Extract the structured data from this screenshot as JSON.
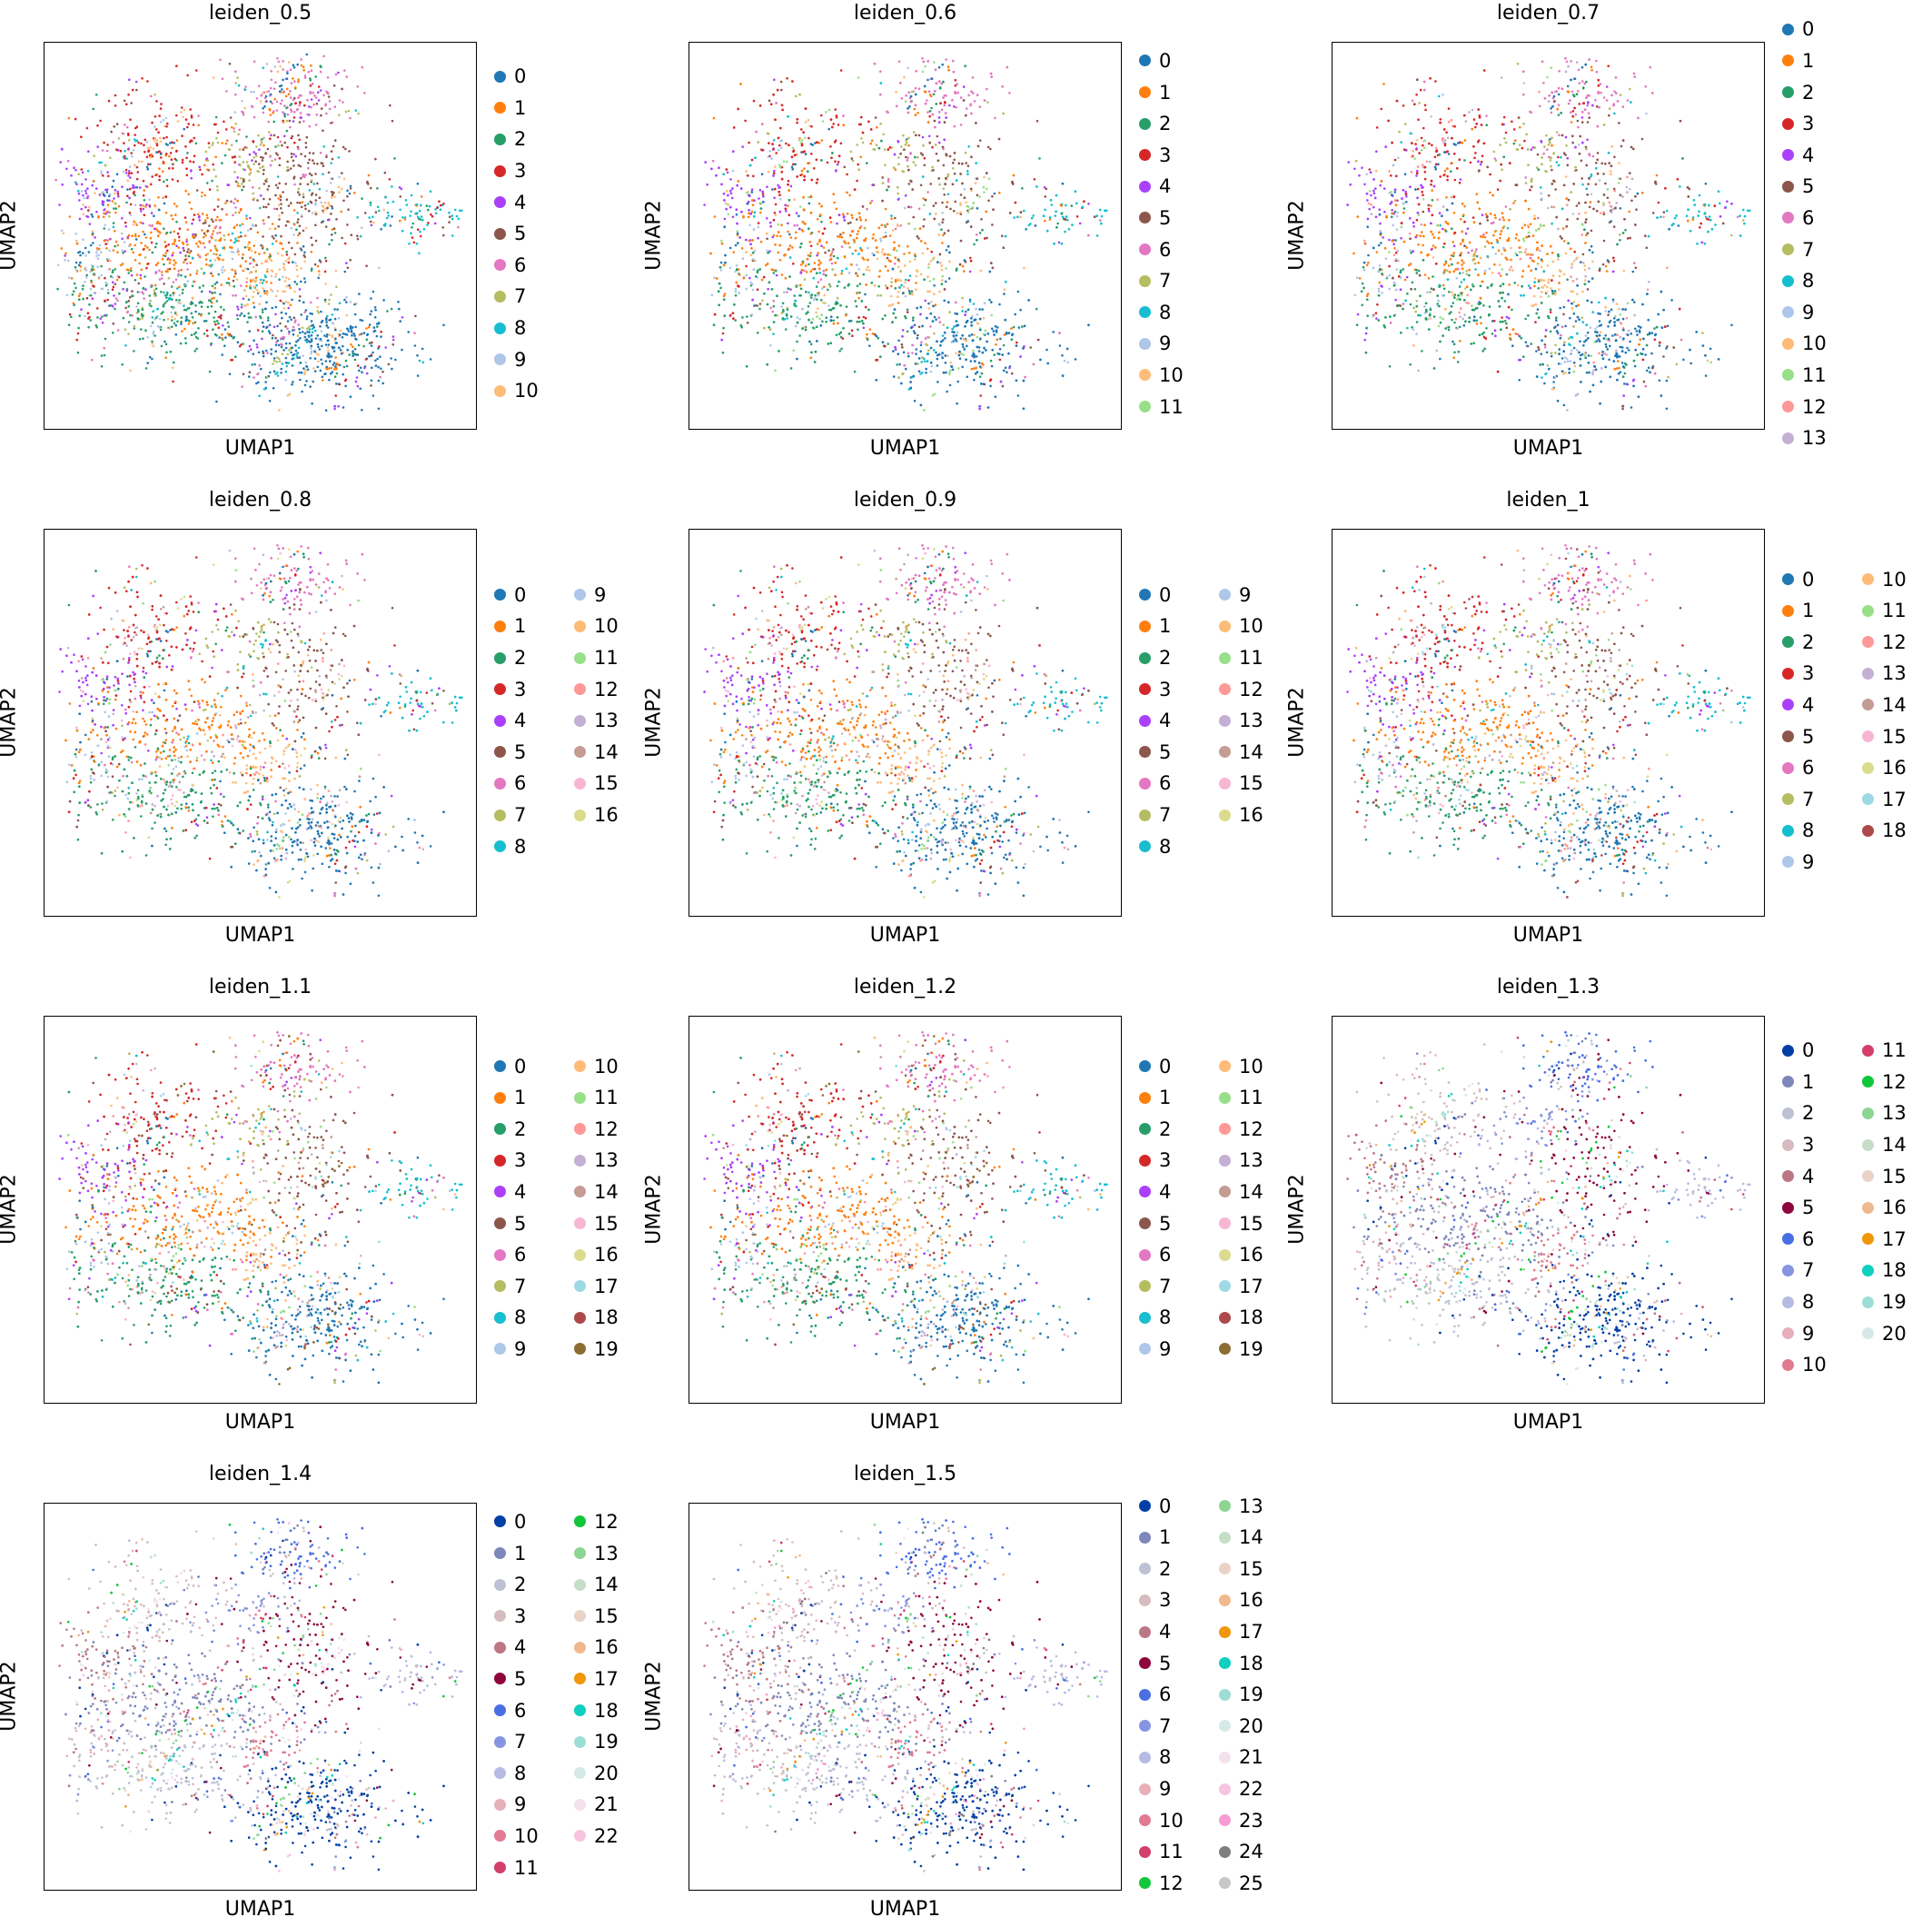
{
  "figure": {
    "xlabel": "UMAP1",
    "ylabel": "UMAP2"
  },
  "chart_data": [
    {
      "type": "scatter",
      "title": "leiden_0.5",
      "xlabel": "UMAP1",
      "ylabel": "UMAP2",
      "grid": false,
      "legend_placement": "right",
      "legend": [
        "0",
        "1",
        "2",
        "3",
        "4",
        "5",
        "6",
        "7",
        "8",
        "9",
        "10"
      ],
      "colors": [
        "#1f77b4",
        "#ff7f0e",
        "#279e68",
        "#d62728",
        "#aa40fc",
        "#8c564b",
        "#e377c2",
        "#b5bd61",
        "#17becf",
        "#aec7e8",
        "#ffbb78"
      ]
    },
    {
      "type": "scatter",
      "title": "leiden_0.6",
      "xlabel": "UMAP1",
      "ylabel": "UMAP2",
      "grid": false,
      "legend_placement": "right",
      "legend": [
        "0",
        "1",
        "2",
        "3",
        "4",
        "5",
        "6",
        "7",
        "8",
        "9",
        "10",
        "11"
      ],
      "colors": [
        "#1f77b4",
        "#ff7f0e",
        "#279e68",
        "#d62728",
        "#aa40fc",
        "#8c564b",
        "#e377c2",
        "#b5bd61",
        "#17becf",
        "#aec7e8",
        "#ffbb78",
        "#98df8a"
      ]
    },
    {
      "type": "scatter",
      "title": "leiden_0.7",
      "xlabel": "UMAP1",
      "ylabel": "UMAP2",
      "grid": false,
      "legend_placement": "right",
      "legend": [
        "0",
        "1",
        "2",
        "3",
        "4",
        "5",
        "6",
        "7",
        "8",
        "9",
        "10",
        "11",
        "12",
        "13"
      ],
      "colors": [
        "#1f77b4",
        "#ff7f0e",
        "#279e68",
        "#d62728",
        "#aa40fc",
        "#8c564b",
        "#e377c2",
        "#b5bd61",
        "#17becf",
        "#aec7e8",
        "#ffbb78",
        "#98df8a",
        "#ff9896",
        "#c5b0d5"
      ]
    },
    {
      "type": "scatter",
      "title": "leiden_0.8",
      "xlabel": "UMAP1",
      "ylabel": "UMAP2",
      "grid": false,
      "legend_placement": "right",
      "legend": [
        "0",
        "1",
        "2",
        "3",
        "4",
        "5",
        "6",
        "7",
        "8",
        "9",
        "10",
        "11",
        "12",
        "13",
        "14",
        "15",
        "16"
      ],
      "colors": [
        "#1f77b4",
        "#ff7f0e",
        "#279e68",
        "#d62728",
        "#aa40fc",
        "#8c564b",
        "#e377c2",
        "#b5bd61",
        "#17becf",
        "#aec7e8",
        "#ffbb78",
        "#98df8a",
        "#ff9896",
        "#c5b0d5",
        "#c49c94",
        "#f7b6d2",
        "#dbdb8d"
      ]
    },
    {
      "type": "scatter",
      "title": "leiden_0.9",
      "xlabel": "UMAP1",
      "ylabel": "UMAP2",
      "grid": false,
      "legend_placement": "right",
      "legend": [
        "0",
        "1",
        "2",
        "3",
        "4",
        "5",
        "6",
        "7",
        "8",
        "9",
        "10",
        "11",
        "12",
        "13",
        "14",
        "15",
        "16"
      ],
      "colors": [
        "#1f77b4",
        "#ff7f0e",
        "#279e68",
        "#d62728",
        "#aa40fc",
        "#8c564b",
        "#e377c2",
        "#b5bd61",
        "#17becf",
        "#aec7e8",
        "#ffbb78",
        "#98df8a",
        "#ff9896",
        "#c5b0d5",
        "#c49c94",
        "#f7b6d2",
        "#dbdb8d"
      ]
    },
    {
      "type": "scatter",
      "title": "leiden_1",
      "xlabel": "UMAP1",
      "ylabel": "UMAP2",
      "grid": false,
      "legend_placement": "right",
      "legend": [
        "0",
        "1",
        "2",
        "3",
        "4",
        "5",
        "6",
        "7",
        "8",
        "9",
        "10",
        "11",
        "12",
        "13",
        "14",
        "15",
        "16",
        "17",
        "18"
      ],
      "colors": [
        "#1f77b4",
        "#ff7f0e",
        "#279e68",
        "#d62728",
        "#aa40fc",
        "#8c564b",
        "#e377c2",
        "#b5bd61",
        "#17becf",
        "#aec7e8",
        "#ffbb78",
        "#98df8a",
        "#ff9896",
        "#c5b0d5",
        "#c49c94",
        "#f7b6d2",
        "#dbdb8d",
        "#9edae5",
        "#ad494a"
      ]
    },
    {
      "type": "scatter",
      "title": "leiden_1.1",
      "xlabel": "UMAP1",
      "ylabel": "UMAP2",
      "grid": false,
      "legend_placement": "right",
      "legend": [
        "0",
        "1",
        "2",
        "3",
        "4",
        "5",
        "6",
        "7",
        "8",
        "9",
        "10",
        "11",
        "12",
        "13",
        "14",
        "15",
        "16",
        "17",
        "18",
        "19"
      ],
      "colors": [
        "#1f77b4",
        "#ff7f0e",
        "#279e68",
        "#d62728",
        "#aa40fc",
        "#8c564b",
        "#e377c2",
        "#b5bd61",
        "#17becf",
        "#aec7e8",
        "#ffbb78",
        "#98df8a",
        "#ff9896",
        "#c5b0d5",
        "#c49c94",
        "#f7b6d2",
        "#dbdb8d",
        "#9edae5",
        "#ad494a",
        "#8c6d31"
      ]
    },
    {
      "type": "scatter",
      "title": "leiden_1.2",
      "xlabel": "UMAP1",
      "ylabel": "UMAP2",
      "grid": false,
      "legend_placement": "right",
      "legend": [
        "0",
        "1",
        "2",
        "3",
        "4",
        "5",
        "6",
        "7",
        "8",
        "9",
        "10",
        "11",
        "12",
        "13",
        "14",
        "15",
        "16",
        "17",
        "18",
        "19"
      ],
      "colors": [
        "#1f77b4",
        "#ff7f0e",
        "#279e68",
        "#d62728",
        "#aa40fc",
        "#8c564b",
        "#e377c2",
        "#b5bd61",
        "#17becf",
        "#aec7e8",
        "#ffbb78",
        "#98df8a",
        "#ff9896",
        "#c5b0d5",
        "#c49c94",
        "#f7b6d2",
        "#dbdb8d",
        "#9edae5",
        "#ad494a",
        "#8c6d31"
      ]
    },
    {
      "type": "scatter",
      "title": "leiden_1.3",
      "xlabel": "UMAP1",
      "ylabel": "UMAP2",
      "grid": false,
      "legend_placement": "right",
      "legend": [
        "0",
        "1",
        "2",
        "3",
        "4",
        "5",
        "6",
        "7",
        "8",
        "9",
        "10",
        "11",
        "12",
        "13",
        "14",
        "15",
        "16",
        "17",
        "18",
        "19",
        "20"
      ],
      "colors": [
        "#023fa5",
        "#7d87b9",
        "#bec1d4",
        "#d6bcc0",
        "#bb7784",
        "#8e063b",
        "#4a6fe3",
        "#8595e1",
        "#b5bbe3",
        "#e6afb9",
        "#e07b91",
        "#d33f6a",
        "#11c638",
        "#8dd593",
        "#c6dec7",
        "#ead3c6",
        "#f0b98d",
        "#ef9708",
        "#0fcfc0",
        "#9cded6",
        "#d5eae7"
      ]
    },
    {
      "type": "scatter",
      "title": "leiden_1.4",
      "xlabel": "UMAP1",
      "ylabel": "UMAP2",
      "grid": false,
      "legend_placement": "right",
      "legend": [
        "0",
        "1",
        "2",
        "3",
        "4",
        "5",
        "6",
        "7",
        "8",
        "9",
        "10",
        "11",
        "12",
        "13",
        "14",
        "15",
        "16",
        "17",
        "18",
        "19",
        "20",
        "21",
        "22"
      ],
      "colors": [
        "#023fa5",
        "#7d87b9",
        "#bec1d4",
        "#d6bcc0",
        "#bb7784",
        "#8e063b",
        "#4a6fe3",
        "#8595e1",
        "#b5bbe3",
        "#e6afb9",
        "#e07b91",
        "#d33f6a",
        "#11c638",
        "#8dd593",
        "#c6dec7",
        "#ead3c6",
        "#f0b98d",
        "#ef9708",
        "#0fcfc0",
        "#9cded6",
        "#d5eae7",
        "#f3e1eb",
        "#f6c4e1"
      ]
    },
    {
      "type": "scatter",
      "title": "leiden_1.5",
      "xlabel": "UMAP1",
      "ylabel": "UMAP2",
      "grid": false,
      "legend_placement": "right",
      "legend": [
        "0",
        "1",
        "2",
        "3",
        "4",
        "5",
        "6",
        "7",
        "8",
        "9",
        "10",
        "11",
        "12",
        "13",
        "14",
        "15",
        "16",
        "17",
        "18",
        "19",
        "20",
        "21",
        "22",
        "23",
        "24",
        "25"
      ],
      "colors": [
        "#023fa5",
        "#7d87b9",
        "#bec1d4",
        "#d6bcc0",
        "#bb7784",
        "#8e063b",
        "#4a6fe3",
        "#8595e1",
        "#b5bbe3",
        "#e6afb9",
        "#e07b91",
        "#d33f6a",
        "#11c638",
        "#8dd593",
        "#c6dec7",
        "#ead3c6",
        "#f0b98d",
        "#ef9708",
        "#0fcfc0",
        "#9cded6",
        "#d5eae7",
        "#f3e1eb",
        "#f6c4e1",
        "#f79cd4",
        "#7f7f7f",
        "#c7c7c7"
      ]
    }
  ]
}
